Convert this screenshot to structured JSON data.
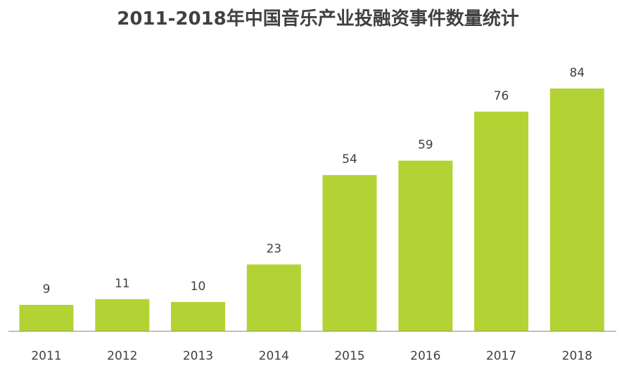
{
  "chart_data": {
    "type": "bar",
    "title": "2011-2018年中国音乐产业投融资事件数量统计",
    "categories": [
      "2011",
      "2012",
      "2013",
      "2014",
      "2015",
      "2016",
      "2017",
      "2018"
    ],
    "values": [
      9,
      11,
      10,
      23,
      54,
      59,
      76,
      84
    ],
    "ylim": [
      0,
      84
    ],
    "grid": false,
    "legend": "none",
    "bar_color": "#b3d334",
    "axis_color": "#8c8c8c",
    "text_color": "#404040"
  }
}
